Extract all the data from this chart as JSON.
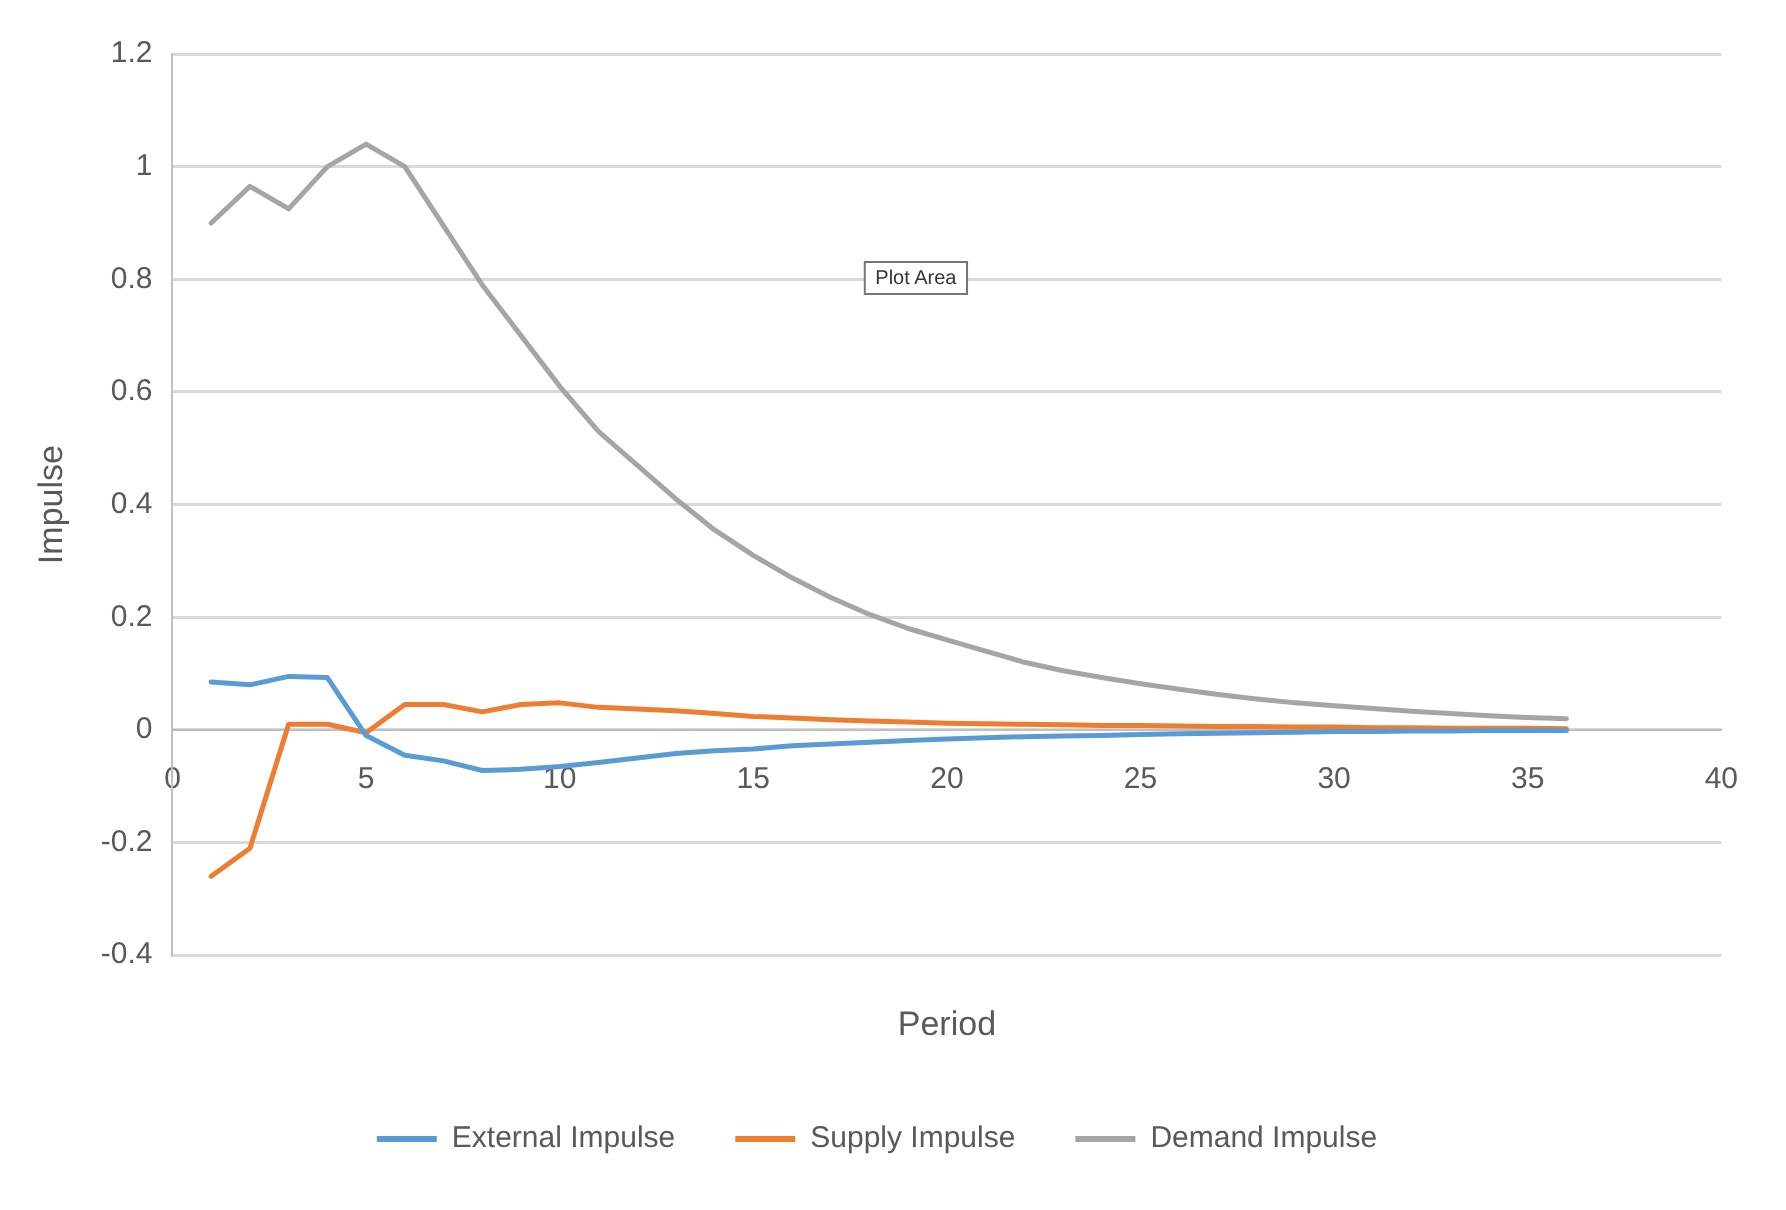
{
  "chart_data": {
    "type": "line",
    "xlabel": "Period",
    "ylabel": "Impulse",
    "annotations": [
      "Plot Area"
    ],
    "x": [
      1,
      2,
      3,
      4,
      5,
      6,
      7,
      8,
      9,
      10,
      11,
      12,
      13,
      14,
      15,
      16,
      17,
      18,
      19,
      20,
      21,
      22,
      23,
      24,
      25,
      26,
      27,
      28,
      29,
      30,
      31,
      32,
      33,
      34,
      35,
      36
    ],
    "xlim": [
      0,
      40
    ],
    "xticks": [
      0,
      5,
      10,
      15,
      20,
      25,
      30,
      35,
      40
    ],
    "ylim": [
      -0.4,
      1.2
    ],
    "yticks": [
      -0.4,
      -0.2,
      0,
      0.2,
      0.4,
      0.6,
      0.8,
      1,
      1.2
    ],
    "grid": "y",
    "legend": "bottom",
    "marker": "none",
    "line_style": "solid",
    "series": [
      {
        "name": "External Impulse",
        "color": "#5b9bd5",
        "values": [
          0.085,
          0.08,
          0.095,
          0.093,
          -0.01,
          -0.045,
          -0.055,
          -0.072,
          -0.07,
          -0.065,
          -0.058,
          -0.05,
          -0.042,
          -0.037,
          -0.034,
          -0.028,
          -0.025,
          -0.022,
          -0.019,
          -0.016,
          -0.014,
          -0.012,
          -0.011,
          -0.01,
          -0.008,
          -0.007,
          -0.006,
          -0.005,
          -0.004,
          -0.003,
          -0.003,
          -0.002,
          -0.002,
          -0.001,
          -0.001,
          -0.001
        ]
      },
      {
        "name": "Supply Impulse",
        "color": "#ed7d31",
        "values": [
          -0.26,
          -0.21,
          0.01,
          0.01,
          -0.005,
          0.045,
          0.045,
          0.032,
          0.045,
          0.048,
          0.04,
          0.037,
          0.034,
          0.029,
          0.024,
          0.021,
          0.018,
          0.016,
          0.014,
          0.012,
          0.011,
          0.01,
          0.009,
          0.008,
          0.008,
          0.007,
          0.006,
          0.006,
          0.005,
          0.005,
          0.004,
          0.004,
          0.003,
          0.003,
          0.003,
          0.002
        ]
      },
      {
        "name": "Demand Impulse",
        "color": "#a5a5a5",
        "values": [
          0.9,
          0.965,
          0.925,
          1.0,
          1.04,
          1.0,
          0.895,
          0.79,
          0.7,
          0.61,
          0.53,
          0.47,
          0.41,
          0.355,
          0.31,
          0.27,
          0.235,
          0.205,
          0.18,
          0.16,
          0.14,
          0.12,
          0.105,
          0.093,
          0.082,
          0.072,
          0.063,
          0.055,
          0.048,
          0.043,
          0.038,
          0.033,
          0.029,
          0.025,
          0.022,
          0.02
        ]
      }
    ]
  }
}
